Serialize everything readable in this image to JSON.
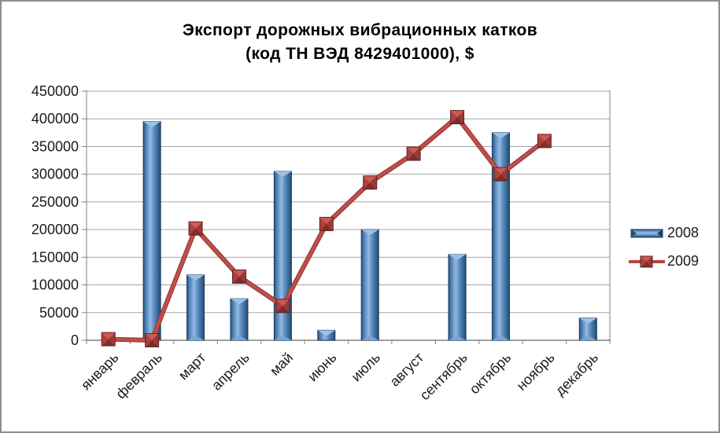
{
  "frame": {
    "border_color": "#8e8e8e",
    "background": "#ffffff"
  },
  "title": {
    "line1": "Экспорт дорожных вибрационных катков",
    "line2": "(код ТН ВЭД 8429401000), $"
  },
  "legend": {
    "position": "right",
    "items": [
      {
        "label": "2008",
        "swatch": "blue-bar"
      },
      {
        "label": "2009",
        "swatch": "red-line-square-marker"
      }
    ]
  },
  "colors": {
    "bar_accent": "#4f81bd",
    "line_accent": "#c0504d",
    "grid": "#a6a6a6",
    "axis": "#808080",
    "label_text": "#1a1a1a"
  },
  "chart_data": {
    "type": "bar",
    "subtype": "combo bar + line with square markers",
    "title": "Экспорт дорожных вибрационных катков (код ТН ВЭД 8429401000), $",
    "xlabel": "",
    "ylabel": "",
    "categories": [
      "январь",
      "февраль",
      "март",
      "апрель",
      "май",
      "июнь",
      "июль",
      "август",
      "сентябрь",
      "октябрь",
      "ноябрь",
      "декабрь"
    ],
    "series": [
      {
        "name": "2008",
        "type": "bar",
        "color": "#4f81bd",
        "values": [
          0,
          395000,
          118000,
          75000,
          305000,
          18000,
          200000,
          0,
          155000,
          375000,
          0,
          40000
        ]
      },
      {
        "name": "2009",
        "type": "line",
        "color": "#c0504d",
        "marker": "square",
        "values": [
          2000,
          0,
          202000,
          115000,
          62000,
          210000,
          285000,
          337000,
          403000,
          300000,
          360000,
          null
        ]
      }
    ],
    "ylim": [
      0,
      450000
    ],
    "ytick_step": 50000,
    "grid": true,
    "legend_position": "right",
    "x_labels_rotation_deg": 45
  }
}
